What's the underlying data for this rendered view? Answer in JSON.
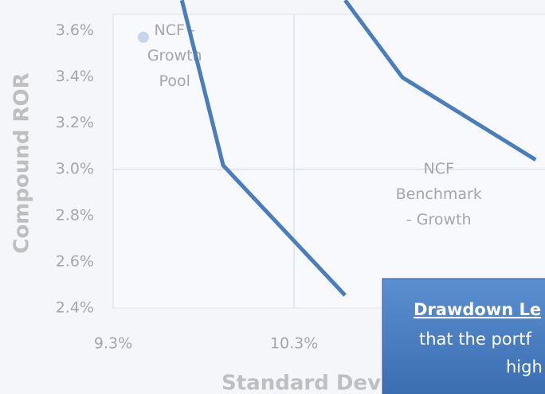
{
  "chart_data": {
    "type": "line",
    "y_label": "Compound ROR",
    "x_label": "Standard Devi",
    "xlim": [
      9.3,
      11.7
    ],
    "ylim": [
      2.4,
      3.67
    ],
    "xticks": [
      {
        "value": 9.3,
        "label": "9.3%"
      },
      {
        "value": 10.3,
        "label": "10.3%"
      }
    ],
    "yticks": [
      {
        "value": 2.4,
        "label": "2.4%"
      },
      {
        "value": 2.6,
        "label": "2.6%"
      },
      {
        "value": 2.8,
        "label": "2.8%"
      },
      {
        "value": 3.0,
        "label": "3.0%"
      },
      {
        "value": 3.2,
        "label": "3.2%"
      },
      {
        "value": 3.4,
        "label": "3.4%"
      },
      {
        "value": 3.6,
        "label": "3.6%"
      }
    ],
    "quadrant_lines": {
      "x": 10.3,
      "y": 3.0
    },
    "series": [
      {
        "color": "#4a7ebb",
        "x": [
          9.68,
          9.908,
          10.582
        ],
        "values": [
          3.731,
          3.017,
          2.455
        ]
      },
      {
        "color": "#4a7ebb",
        "x": [
          10.582,
          10.899,
          11.635
        ],
        "values": [
          3.731,
          3.397,
          3.041
        ]
      }
    ],
    "points": [
      {
        "color": "#c5d5ea",
        "x": 9.467,
        "y": 3.571
      }
    ],
    "annotations": [
      {
        "lines": [
          "NCF -",
          "Growth",
          "Pool"
        ],
        "x": 9.64,
        "y": 3.49
      },
      {
        "lines": [
          "NCF",
          "Benchmark",
          "- Growth"
        ],
        "x": 11.1,
        "y": 2.89
      }
    ]
  },
  "callout": {
    "lines": [
      "Drawdown Le",
      "that the portf",
      "high"
    ]
  }
}
